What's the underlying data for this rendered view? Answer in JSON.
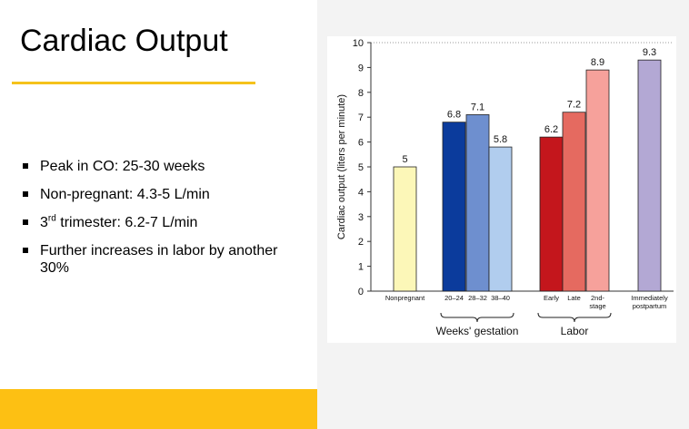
{
  "slide": {
    "title": "Cardiac Output",
    "bullets": [
      {
        "pre": "Peak in CO: 25-30 weeks"
      },
      {
        "pre": "Non-pregnant: 4.3-5 L/min"
      },
      {
        "pre": "3",
        "sup": "rd",
        "post": " trimester: 6.2-7 L/min"
      },
      {
        "pre": "Further increases in labor by another 30%"
      }
    ]
  },
  "chart_data": {
    "type": "bar",
    "ylabel": "Cardiac output (liters per minute)",
    "ylim": [
      0,
      10
    ],
    "yticks": [
      0,
      1,
      2,
      3,
      4,
      5,
      6,
      7,
      8,
      9,
      10
    ],
    "bars": [
      {
        "label": "Nonpregnant",
        "value": 5,
        "value_label": "5",
        "color": "#fcf7b8"
      },
      {
        "label": "20–24",
        "value": 6.8,
        "value_label": "6.8",
        "color": "#0b3b9c"
      },
      {
        "label": "28–32",
        "value": 7.1,
        "value_label": "7.1",
        "color": "#6e8fcf"
      },
      {
        "label": "38–40",
        "value": 5.8,
        "value_label": "5.8",
        "color": "#b1cdee"
      },
      {
        "label": "Early",
        "value": 6.2,
        "value_label": "6.2",
        "color": "#c4161c"
      },
      {
        "label": "Late",
        "value": 7.2,
        "value_label": "7.2",
        "color": "#e56a60"
      },
      {
        "label": "2nd-\nstage",
        "value": 8.9,
        "value_label": "8.9",
        "color": "#f6a19b"
      },
      {
        "label": "Immediately\npostpartum",
        "value": 9.3,
        "value_label": "9.3",
        "color": "#b3a8d4"
      }
    ],
    "groups": [
      {
        "label": "Weeks' gestation",
        "bars": [
          1,
          2,
          3
        ]
      },
      {
        "label": "Labor",
        "bars": [
          4,
          5,
          6
        ]
      }
    ]
  }
}
